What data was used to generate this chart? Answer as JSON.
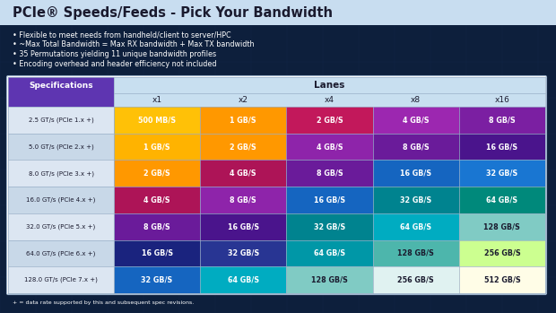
{
  "title": "PCIe® Speeds/Feeds - Pick Your Bandwidth",
  "bullet_points": [
    "• Flexible to meet needs from handheld/client to server/HPC",
    "• ~Max Total Bandwidth = Max RX bandwidth + Max TX bandwidth",
    "• 35 Permutations yielding 11 unique bandwidth profiles",
    "• Encoding overhead and header efficiency not included"
  ],
  "footer": "+ = data rate supported by this and subsequent spec revisions.",
  "col_header": "Lanes",
  "col_spec": "Specifications",
  "lanes": [
    "x1",
    "x2",
    "x4",
    "x8",
    "x16"
  ],
  "rows": [
    {
      "spec": "2.5 GT/s (PCIe 1.x +)",
      "values": [
        "500 MB/S",
        "1 GB/S",
        "2 GB/S",
        "4 GB/S",
        "8 GB/S"
      ],
      "colors": [
        "#FFC107",
        "#FF9800",
        "#C2185B",
        "#9C27B0",
        "#7B1FA2"
      ]
    },
    {
      "spec": "5.0 GT/s (PCIe 2.x +)",
      "values": [
        "1 GB/S",
        "2 GB/S",
        "4 GB/S",
        "8 GB/S",
        "16 GB/S"
      ],
      "colors": [
        "#FFB300",
        "#FF9800",
        "#8E24AA",
        "#6A1B9A",
        "#4A148C"
      ]
    },
    {
      "spec": "8.0 GT/s (PCIe 3.x +)",
      "values": [
        "2 GB/S",
        "4 GB/S",
        "8 GB/S",
        "16 GB/S",
        "32 GB/S"
      ],
      "colors": [
        "#FF9800",
        "#AD1457",
        "#6A1B9A",
        "#1565C0",
        "#1976D2"
      ]
    },
    {
      "spec": "16.0 GT/s (PCIe 4.x +)",
      "values": [
        "4 GB/S",
        "8 GB/S",
        "16 GB/S",
        "32 GB/S",
        "64 GB/S"
      ],
      "colors": [
        "#AD1457",
        "#8E24AA",
        "#1565C0",
        "#00838F",
        "#00897B"
      ]
    },
    {
      "spec": "32.0 GT/s (PCIe 5.x +)",
      "values": [
        "8 GB/S",
        "16 GB/S",
        "32 GB/S",
        "64 GB/S",
        "128 GB/S"
      ],
      "colors": [
        "#6A1B9A",
        "#4A148C",
        "#00838F",
        "#00ACC1",
        "#80CBC4"
      ]
    },
    {
      "spec": "64.0 GT/s (PCIe 6.x +)",
      "values": [
        "16 GB/S",
        "32 GB/S",
        "64 GB/S",
        "128 GB/S",
        "256 GB/S"
      ],
      "colors": [
        "#1A237E",
        "#283593",
        "#0097A7",
        "#4DB6AC",
        "#CCFF90"
      ]
    },
    {
      "spec": "128.0 GT/s (PCIe 7.x +)",
      "values": [
        "32 GB/S",
        "64 GB/S",
        "128 GB/S",
        "256 GB/S",
        "512 GB/S"
      ],
      "colors": [
        "#1565C0",
        "#00ACC1",
        "#80CBC4",
        "#E0F2F1",
        "#FFFDE7"
      ]
    }
  ],
  "bg_top": "#0d1f3c",
  "bg_bottom": "#0d1f3c",
  "title_bg": "#d0e4f0",
  "header_col_bg": "#5e35b1",
  "header_lanes_bg": "#c8dff0",
  "row_spec_bg_even": "#dce6f2",
  "row_spec_bg_odd": "#c8d8e8",
  "separator_color": "#9ab0c8",
  "table_border": "#9ab0c8"
}
